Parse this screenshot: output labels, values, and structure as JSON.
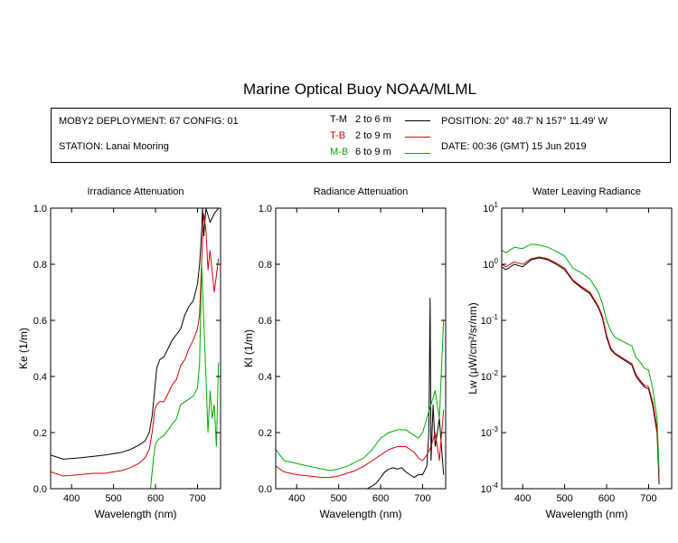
{
  "title": "Marine Optical Buoy NOAA/MLML",
  "info": {
    "deployment": "MOBY2 DEPLOYMENT: 67 CONFIG: 01",
    "station": "STATION: Lanai Mooring",
    "position": "POSITION: 20° 48.7' N   157° 11.49' W",
    "date": "DATE: 00:36 (GMT) 15 Jun 2019"
  },
  "legend": [
    {
      "code": "T-M",
      "range": "2 to 6  m",
      "color": "#000000"
    },
    {
      "code": "T-B",
      "range": "2 to 9  m",
      "color": "#dd0000"
    },
    {
      "code": "M-B",
      "range": "6 to 9  m",
      "color": "#00aa00"
    }
  ],
  "colors": {
    "T-M": "#000000",
    "T-B": "#dd0000",
    "M-B": "#00aa00"
  },
  "chart_data": [
    {
      "type": "line",
      "title": "Irradiance Attenuation",
      "xlabel": "Wavelength (nm)",
      "ylabel": "Ke  (1/m)",
      "xlim": [
        350,
        755
      ],
      "ylim": [
        0,
        1
      ],
      "xticks": [
        400,
        500,
        600,
        700
      ],
      "yticks": [
        "0.0",
        "0.2",
        "0.4",
        "0.6",
        "0.8",
        "1.0"
      ],
      "series": [
        {
          "name": "T-M",
          "x": [
            350,
            380,
            420,
            450,
            480,
            500,
            520,
            540,
            560,
            575,
            585,
            592,
            598,
            603,
            610,
            620,
            630,
            640,
            650,
            660,
            670,
            680,
            690,
            700,
            705,
            710,
            712,
            715,
            720,
            730,
            740,
            750
          ],
          "y": [
            0.12,
            0.105,
            0.11,
            0.115,
            0.12,
            0.125,
            0.13,
            0.14,
            0.155,
            0.17,
            0.2,
            0.26,
            0.35,
            0.43,
            0.46,
            0.47,
            0.5,
            0.53,
            0.55,
            0.57,
            0.62,
            0.65,
            0.67,
            0.73,
            0.8,
            0.92,
            1.0,
            0.9,
            1.0,
            0.95,
            0.98,
            1.0
          ]
        },
        {
          "name": "T-B",
          "x": [
            350,
            380,
            420,
            450,
            480,
            500,
            520,
            540,
            560,
            575,
            585,
            592,
            598,
            603,
            610,
            620,
            630,
            640,
            650,
            660,
            670,
            680,
            690,
            700,
            705,
            710,
            715,
            720,
            725,
            730,
            740,
            750
          ],
          "y": [
            0.06,
            0.045,
            0.05,
            0.055,
            0.055,
            0.06,
            0.065,
            0.075,
            0.09,
            0.11,
            0.14,
            0.2,
            0.28,
            0.3,
            0.31,
            0.31,
            0.34,
            0.37,
            0.39,
            0.44,
            0.46,
            0.5,
            0.53,
            0.57,
            0.62,
            0.82,
            0.98,
            0.92,
            0.78,
            0.85,
            0.7,
            0.82
          ]
        },
        {
          "name": "M-B",
          "x": [
            588,
            592,
            596,
            600,
            604,
            610,
            620,
            630,
            640,
            650,
            660,
            670,
            680,
            690,
            700,
            705,
            710,
            715,
            720,
            725,
            730,
            735,
            740,
            745,
            750
          ],
          "y": [
            0.0,
            0.06,
            0.12,
            0.16,
            0.17,
            0.18,
            0.19,
            0.21,
            0.23,
            0.25,
            0.3,
            0.31,
            0.32,
            0.33,
            0.36,
            0.45,
            0.8,
            0.6,
            0.4,
            0.2,
            0.35,
            0.25,
            0.3,
            0.15,
            0.45
          ]
        }
      ]
    },
    {
      "type": "line",
      "title": "Radiance Attenuation",
      "xlabel": "Wavelength (nm)",
      "ylabel": "Kl  (1/m)",
      "xlim": [
        350,
        755
      ],
      "ylim": [
        0,
        1
      ],
      "xticks": [
        400,
        500,
        600,
        700
      ],
      "yticks": [
        "0.0",
        "0.2",
        "0.4",
        "0.6",
        "0.8",
        "1.0"
      ],
      "series": [
        {
          "name": "T-M",
          "x": [
            568,
            580,
            590,
            600,
            610,
            620,
            630,
            640,
            650,
            660,
            670,
            680,
            690,
            700,
            710,
            715,
            718,
            720,
            725,
            730,
            740,
            750
          ],
          "y": [
            0.0,
            0.01,
            0.02,
            0.04,
            0.06,
            0.07,
            0.075,
            0.07,
            0.075,
            0.06,
            0.05,
            0.04,
            0.05,
            0.05,
            0.08,
            0.2,
            0.68,
            0.1,
            0.3,
            0.15,
            0.25,
            0.05
          ]
        },
        {
          "name": "T-B",
          "x": [
            350,
            370,
            400,
            430,
            460,
            480,
            500,
            520,
            540,
            560,
            580,
            600,
            620,
            640,
            660,
            670,
            680,
            690,
            700,
            710,
            720,
            730,
            740,
            750
          ],
          "y": [
            0.08,
            0.06,
            0.05,
            0.045,
            0.04,
            0.04,
            0.045,
            0.055,
            0.065,
            0.08,
            0.1,
            0.12,
            0.14,
            0.15,
            0.15,
            0.14,
            0.13,
            0.11,
            0.1,
            0.12,
            0.15,
            0.2,
            0.1,
            0.28
          ]
        },
        {
          "name": "M-B",
          "x": [
            350,
            370,
            400,
            430,
            460,
            480,
            500,
            520,
            540,
            560,
            580,
            600,
            620,
            640,
            660,
            670,
            680,
            690,
            700,
            710,
            720,
            730,
            740,
            750
          ],
          "y": [
            0.14,
            0.1,
            0.09,
            0.08,
            0.07,
            0.065,
            0.07,
            0.08,
            0.095,
            0.11,
            0.14,
            0.18,
            0.2,
            0.21,
            0.21,
            0.2,
            0.19,
            0.18,
            0.2,
            0.25,
            0.3,
            0.35,
            0.25,
            0.6
          ]
        }
      ]
    },
    {
      "type": "line",
      "title": "Water Leaving Radiance",
      "xlabel": "Wavelength (nm)",
      "ylabel": "Lw  (µW/cm²/sr/nm)",
      "xscale": "log-y",
      "xlim": [
        350,
        755
      ],
      "ylim": [
        0.0001,
        10
      ],
      "xticks": [
        400,
        500,
        600,
        700
      ],
      "ytick_values": [
        0.0001,
        0.001,
        0.01,
        0.1,
        1,
        10
      ],
      "series": [
        {
          "name": "T-M",
          "x": [
            350,
            360,
            380,
            400,
            420,
            440,
            460,
            480,
            500,
            520,
            540,
            560,
            580,
            590,
            600,
            610,
            620,
            640,
            660,
            670,
            680,
            690,
            700,
            710,
            720,
            725
          ],
          "y": [
            0.9,
            0.8,
            1.0,
            0.9,
            1.2,
            1.3,
            1.2,
            1.0,
            0.8,
            0.5,
            0.38,
            0.3,
            0.17,
            0.11,
            0.05,
            0.03,
            0.025,
            0.02,
            0.016,
            0.01,
            0.008,
            0.0065,
            0.006,
            0.003,
            0.001,
            0.00012
          ]
        },
        {
          "name": "T-B",
          "x": [
            350,
            360,
            380,
            400,
            420,
            440,
            460,
            480,
            500,
            520,
            540,
            560,
            580,
            590,
            600,
            610,
            620,
            640,
            660,
            670,
            680,
            690,
            700,
            710,
            720,
            725
          ],
          "y": [
            1.0,
            0.9,
            1.1,
            1.0,
            1.25,
            1.35,
            1.25,
            1.05,
            0.85,
            0.52,
            0.4,
            0.32,
            0.18,
            0.12,
            0.055,
            0.032,
            0.026,
            0.021,
            0.017,
            0.011,
            0.0085,
            0.007,
            0.0065,
            0.0035,
            0.0012,
            0.00015
          ]
        },
        {
          "name": "M-B",
          "x": [
            350,
            360,
            380,
            400,
            420,
            440,
            460,
            480,
            500,
            520,
            540,
            560,
            580,
            590,
            600,
            610,
            620,
            640,
            660,
            670,
            680,
            690,
            700,
            710,
            720,
            725
          ],
          "y": [
            1.8,
            1.6,
            2.0,
            1.9,
            2.3,
            2.2,
            2.0,
            1.7,
            1.4,
            0.85,
            0.7,
            0.55,
            0.32,
            0.2,
            0.1,
            0.065,
            0.05,
            0.042,
            0.035,
            0.022,
            0.018,
            0.014,
            0.013,
            0.006,
            0.0018,
            0.0002
          ]
        }
      ]
    }
  ]
}
